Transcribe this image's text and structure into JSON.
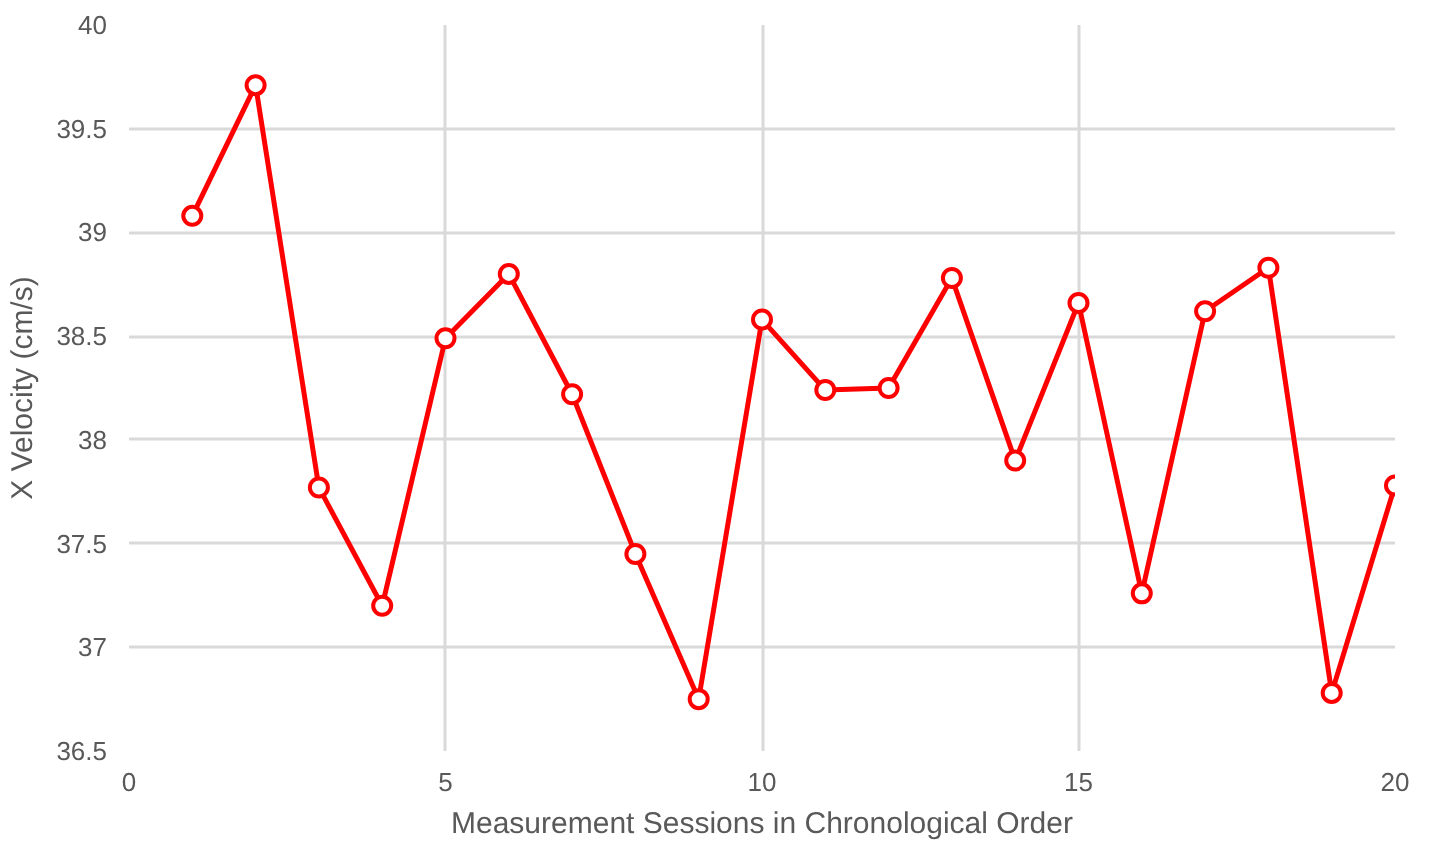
{
  "chart_data": {
    "type": "line",
    "xlabel": "Measurement Sessions in Chronological Order",
    "ylabel": "X Velocity (cm/s)",
    "x": [
      1,
      2,
      3,
      4,
      5,
      6,
      7,
      8,
      9,
      10,
      11,
      12,
      13,
      14,
      15,
      16,
      17,
      18,
      19,
      20
    ],
    "series": [
      {
        "color": "#ff0000",
        "values": [
          39.08,
          39.71,
          37.77,
          37.2,
          38.49,
          38.8,
          38.22,
          37.45,
          36.75,
          38.58,
          38.24,
          38.25,
          38.78,
          37.9,
          38.66,
          37.26,
          38.62,
          38.83,
          36.78,
          37.78
        ]
      }
    ],
    "xlim": [
      0,
      20
    ],
    "xticks": [
      0,
      5,
      10,
      15,
      20
    ],
    "ylim": [
      36.5,
      40
    ],
    "yticks": [
      36.5,
      37,
      37.5,
      38,
      38.5,
      39,
      39.5,
      40
    ],
    "grid": true,
    "marker": "circle",
    "line_style": "solid"
  }
}
